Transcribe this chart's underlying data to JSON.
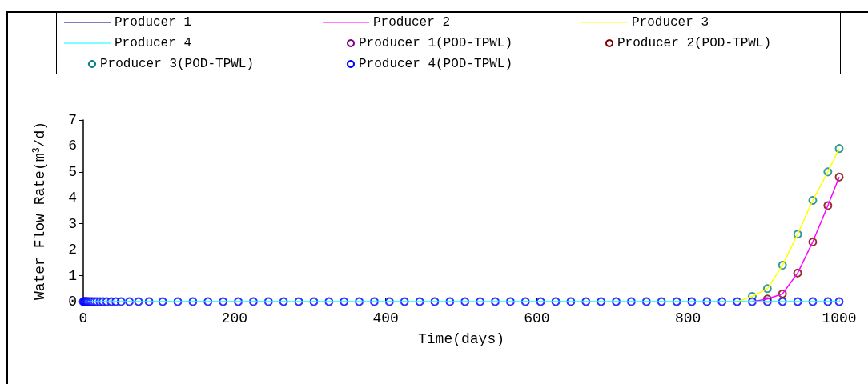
{
  "chart_data": {
    "type": "line",
    "xlabel": "Time(days)",
    "ylabel": "Water Flow Rate(m$^{3}$/d)",
    "x": [
      0,
      1,
      2,
      3,
      4,
      5,
      6,
      8,
      10,
      12,
      15,
      18,
      22,
      26,
      31,
      37,
      43,
      50,
      61,
      73,
      87,
      105,
      125,
      145,
      165,
      185,
      205,
      225,
      245,
      265,
      285,
      305,
      325,
      345,
      365,
      385,
      405,
      425,
      445,
      465,
      485,
      505,
      525,
      545,
      565,
      585,
      605,
      625,
      645,
      665,
      685,
      705,
      725,
      745,
      765,
      785,
      805,
      825,
      845,
      865,
      885,
      905,
      925,
      945,
      965,
      985,
      1000
    ],
    "xlim": [
      0,
      1000
    ],
    "xticks": [
      0,
      200,
      400,
      600,
      800,
      1000
    ],
    "ylim": [
      0,
      7
    ],
    "yticks": [
      0,
      1,
      2,
      3,
      4,
      5,
      6,
      7
    ],
    "grid": false,
    "legend": "top",
    "series": [
      {
        "name": "Producer 1",
        "color": "#000080",
        "values": [
          null,
          null,
          null,
          null,
          null,
          null,
          null,
          null,
          null,
          null,
          null,
          null,
          null,
          null,
          null,
          null,
          null,
          null,
          null,
          null,
          null,
          null,
          null,
          null,
          null,
          null,
          null,
          null,
          null,
          null,
          null,
          null,
          null,
          null,
          null,
          null,
          null,
          null,
          null,
          null,
          null,
          null,
          null,
          null,
          null,
          null,
          null,
          null,
          null,
          null,
          null,
          null,
          null,
          null,
          null,
          null,
          null,
          null,
          null,
          null,
          null,
          null,
          null,
          null,
          null,
          null,
          null
        ]
      },
      {
        "name": "Producer 2",
        "color": "#ff00ff",
        "values": [
          null,
          null,
          null,
          null,
          null,
          null,
          null,
          null,
          null,
          null,
          null,
          null,
          null,
          null,
          null,
          null,
          null,
          null,
          null,
          null,
          null,
          null,
          null,
          null,
          null,
          null,
          null,
          null,
          null,
          null,
          null,
          null,
          null,
          null,
          null,
          null,
          null,
          null,
          null,
          null,
          null,
          null,
          null,
          null,
          null,
          null,
          null,
          null,
          null,
          null,
          null,
          null,
          null,
          null,
          null,
          null,
          null,
          null,
          null,
          null,
          0,
          0.1,
          0.3,
          1.1,
          2.3,
          3.7,
          4.8
        ]
      },
      {
        "name": "Producer 3",
        "color": "#ffff00",
        "values": [
          null,
          null,
          null,
          null,
          null,
          null,
          null,
          null,
          null,
          null,
          null,
          null,
          null,
          null,
          null,
          null,
          null,
          null,
          null,
          null,
          null,
          null,
          null,
          null,
          null,
          null,
          null,
          null,
          null,
          null,
          null,
          null,
          null,
          null,
          null,
          null,
          null,
          null,
          null,
          null,
          null,
          null,
          null,
          null,
          null,
          null,
          null,
          null,
          null,
          null,
          null,
          null,
          null,
          null,
          null,
          null,
          null,
          null,
          null,
          0,
          0.2,
          0.5,
          1.4,
          2.6,
          3.9,
          5.0,
          5.9
        ]
      },
      {
        "name": "Producer 4",
        "color": "#00ffff",
        "values": [
          null,
          null,
          null,
          null,
          null,
          null,
          0,
          0,
          0,
          0,
          0,
          0,
          0,
          0,
          0,
          0,
          0,
          0,
          0,
          0,
          0,
          0,
          0,
          0,
          0,
          0,
          0,
          0,
          0,
          0,
          0,
          0,
          0,
          0,
          0,
          0,
          0,
          0,
          0,
          0,
          0,
          0,
          0,
          0,
          0,
          0,
          0,
          0,
          0,
          0,
          0,
          0,
          0,
          0,
          0,
          0,
          0,
          0,
          0,
          0,
          0,
          0,
          0,
          0,
          0,
          0,
          0
        ]
      },
      {
        "name": "Producer 1(POD-TPWL)",
        "type": "scatter",
        "marker": "circle",
        "color": "#800080",
        "values": [
          null,
          null,
          null,
          null,
          null,
          null,
          null,
          null,
          null,
          null,
          null,
          null,
          null,
          null,
          null,
          null,
          null,
          null,
          null,
          null,
          null,
          null,
          null,
          null,
          null,
          null,
          null,
          null,
          null,
          null,
          null,
          null,
          null,
          null,
          null,
          null,
          null,
          null,
          null,
          null,
          null,
          null,
          null,
          null,
          null,
          null,
          null,
          null,
          null,
          null,
          null,
          null,
          null,
          null,
          null,
          null,
          null,
          null,
          null,
          null,
          null,
          null,
          null,
          null,
          null,
          null,
          null
        ]
      },
      {
        "name": "Producer 2(POD-TPWL)",
        "type": "scatter",
        "marker": "circle",
        "color": "#800000",
        "values": [
          null,
          null,
          null,
          null,
          null,
          null,
          null,
          null,
          null,
          null,
          null,
          null,
          null,
          null,
          null,
          null,
          null,
          null,
          null,
          null,
          null,
          null,
          null,
          null,
          null,
          null,
          null,
          null,
          null,
          null,
          null,
          null,
          null,
          null,
          null,
          null,
          null,
          null,
          null,
          null,
          null,
          null,
          null,
          null,
          null,
          null,
          null,
          null,
          null,
          null,
          null,
          null,
          null,
          null,
          null,
          null,
          null,
          null,
          null,
          null,
          null,
          0.1,
          0.3,
          1.1,
          2.3,
          3.7,
          4.8
        ]
      },
      {
        "name": "Producer 3(POD-TPWL)",
        "type": "scatter",
        "marker": "circle",
        "color": "#008080",
        "values": [
          null,
          null,
          null,
          null,
          null,
          null,
          null,
          null,
          null,
          null,
          null,
          null,
          null,
          null,
          null,
          null,
          null,
          null,
          null,
          null,
          null,
          null,
          null,
          null,
          null,
          null,
          null,
          null,
          null,
          null,
          null,
          null,
          null,
          null,
          null,
          null,
          null,
          null,
          null,
          null,
          null,
          null,
          null,
          null,
          null,
          null,
          null,
          null,
          null,
          null,
          null,
          null,
          null,
          null,
          null,
          null,
          null,
          null,
          null,
          null,
          0.2,
          0.5,
          1.4,
          2.6,
          3.9,
          5.0,
          5.9
        ]
      },
      {
        "name": "Producer 4(POD-TPWL)",
        "type": "scatter",
        "marker": "circle",
        "color": "#0000ff",
        "values": [
          0,
          0,
          0,
          0,
          0,
          0,
          0,
          0,
          0,
          0,
          0,
          0,
          0,
          0,
          0,
          0,
          0,
          0,
          0,
          0,
          0,
          0,
          0,
          0,
          0,
          0,
          0,
          0,
          0,
          0,
          0,
          0,
          0,
          0,
          0,
          0,
          0,
          0,
          0,
          0,
          0,
          0,
          0,
          0,
          0,
          0,
          0,
          0,
          0,
          0,
          0,
          0,
          0,
          0,
          0,
          0,
          0,
          0,
          0,
          0,
          0,
          0,
          0,
          0,
          0,
          0,
          0
        ]
      }
    ]
  }
}
